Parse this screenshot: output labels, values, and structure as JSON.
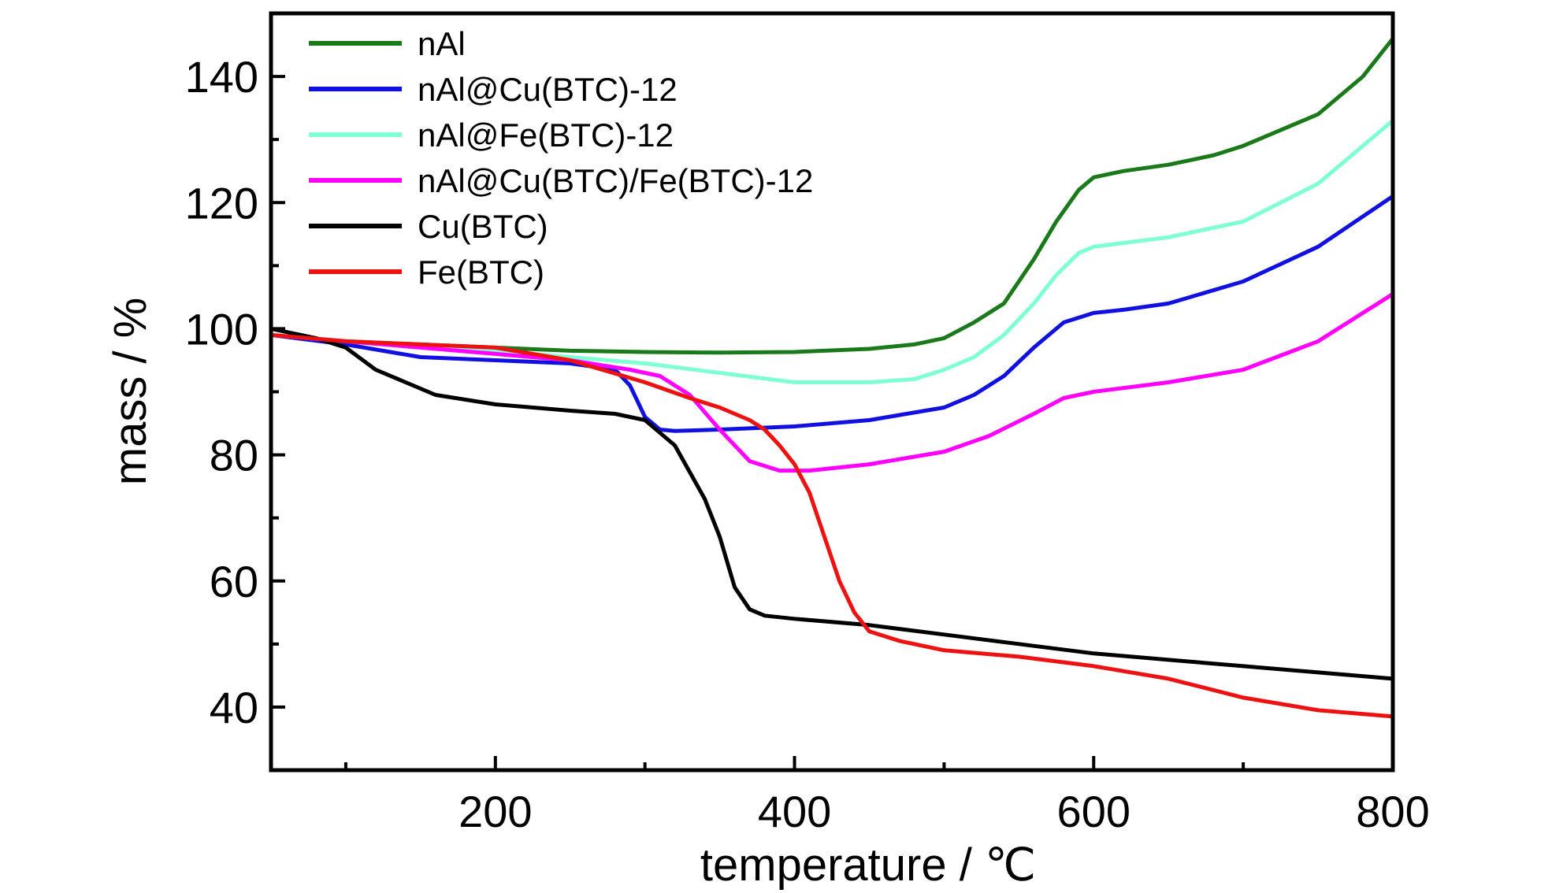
{
  "chart_data": {
    "type": "line",
    "xlabel": "temperature / ℃",
    "ylabel": "mass / %",
    "xlim": [
      50,
      800
    ],
    "ylim": [
      30,
      150
    ],
    "xticks": [
      200,
      400,
      600,
      800
    ],
    "yticks": [
      40,
      60,
      80,
      100,
      120,
      140
    ],
    "legend_position": "top-left",
    "grid": false,
    "series": [
      {
        "name": "nAl",
        "color": "#1a7a1a",
        "x": [
          50,
          100,
          150,
          200,
          250,
          300,
          350,
          400,
          450,
          480,
          500,
          520,
          540,
          560,
          575,
          590,
          600,
          620,
          650,
          680,
          700,
          720,
          750,
          780,
          800
        ],
        "y": [
          99,
          98,
          97.5,
          97,
          96.5,
          96.3,
          96.2,
          96.3,
          96.8,
          97.5,
          98.5,
          101,
          104,
          111,
          117,
          122,
          124,
          125,
          126,
          127.5,
          129,
          131,
          134,
          140,
          146
        ]
      },
      {
        "name": "nAl@Cu(BTC)-12",
        "color": "#1010e0",
        "x": [
          50,
          100,
          150,
          200,
          250,
          280,
          290,
          300,
          310,
          320,
          350,
          400,
          450,
          500,
          520,
          540,
          560,
          580,
          600,
          620,
          650,
          700,
          750,
          800
        ],
        "y": [
          99,
          97.5,
          95.5,
          95,
          94.5,
          93.5,
          91,
          86,
          84,
          83.8,
          84,
          84.5,
          85.5,
          87.5,
          89.5,
          92.5,
          97,
          101,
          102.5,
          103,
          104,
          107.5,
          113,
          121
        ]
      },
      {
        "name": "nAl@Fe(BTC)-12",
        "color": "#7fffd4",
        "x": [
          50,
          100,
          150,
          200,
          250,
          300,
          350,
          400,
          450,
          480,
          500,
          520,
          540,
          560,
          575,
          590,
          600,
          650,
          700,
          750,
          800
        ],
        "y": [
          99,
          98,
          97,
          96.5,
          95.5,
          94.5,
          93,
          91.5,
          91.5,
          92,
          93.5,
          95.5,
          99,
          104,
          108.5,
          112,
          113,
          114.5,
          117,
          123,
          133
        ]
      },
      {
        "name": "nAl@Cu(BTC)/Fe(BTC)-12",
        "color": "#ff00ff",
        "x": [
          50,
          100,
          150,
          200,
          250,
          290,
          310,
          330,
          350,
          370,
          390,
          410,
          450,
          500,
          530,
          560,
          580,
          600,
          650,
          700,
          750,
          800
        ],
        "y": [
          99,
          98,
          97,
          96,
          95,
          93.5,
          92.5,
          89.5,
          84,
          79,
          77.5,
          77.5,
          78.5,
          80.5,
          83,
          86.5,
          89,
          90,
          91.5,
          93.5,
          98,
          105.5
        ]
      },
      {
        "name": "Cu(BTC)",
        "color": "#000000",
        "x": [
          50,
          80,
          100,
          120,
          140,
          160,
          200,
          250,
          280,
          300,
          320,
          340,
          350,
          360,
          370,
          380,
          400,
          450,
          500,
          550,
          600,
          650,
          700,
          750,
          800
        ],
        "y": [
          100,
          98.5,
          97,
          93.5,
          91.5,
          89.5,
          88,
          87,
          86.5,
          85.5,
          81.5,
          73,
          67,
          59,
          55.5,
          54.5,
          54,
          53,
          51.5,
          50,
          48.5,
          47.5,
          46.5,
          45.5,
          44.5
        ]
      },
      {
        "name": "Fe(BTC)",
        "color": "#ee1111",
        "x": [
          50,
          100,
          150,
          200,
          250,
          300,
          330,
          350,
          370,
          380,
          390,
          400,
          410,
          420,
          430,
          440,
          450,
          470,
          500,
          550,
          600,
          650,
          700,
          750,
          800
        ],
        "y": [
          99,
          98,
          97.5,
          97,
          95,
          91.5,
          89,
          87.5,
          85.5,
          84,
          81.5,
          78.5,
          74,
          67,
          60,
          55,
          52,
          50.5,
          49,
          48,
          46.5,
          44.5,
          41.5,
          39.5,
          38.5
        ]
      }
    ]
  }
}
